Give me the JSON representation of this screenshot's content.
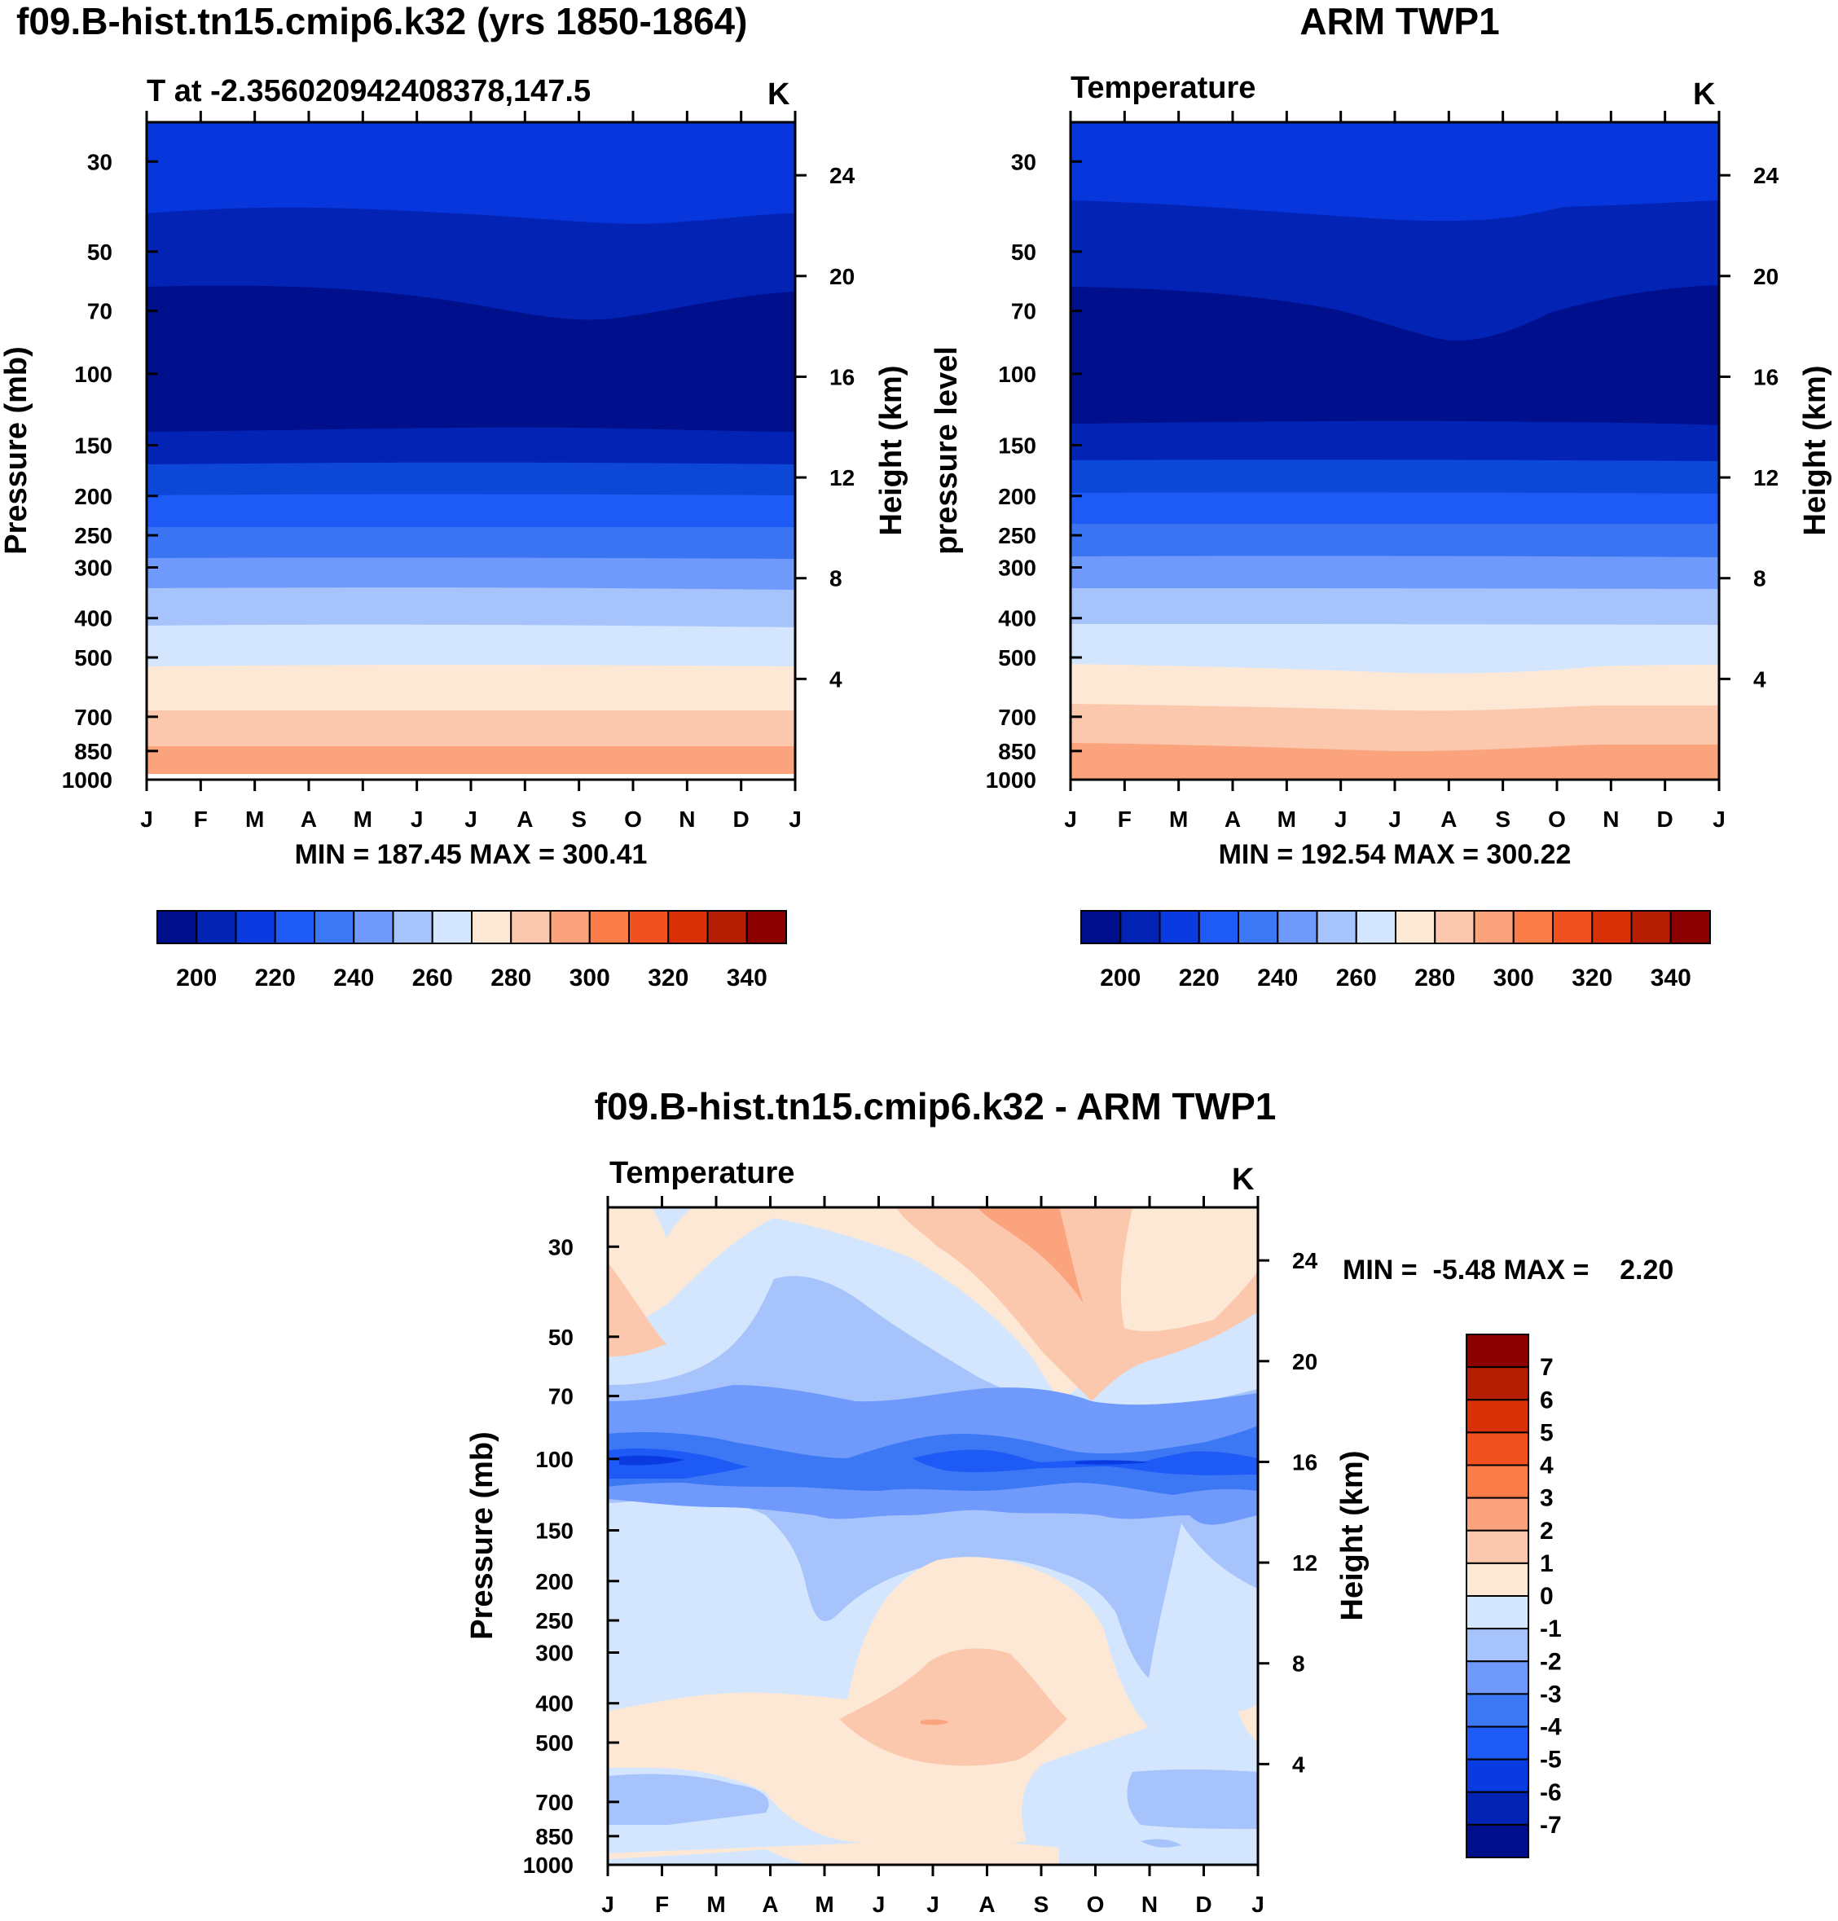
{
  "chart_data": [
    {
      "type": "contour",
      "id": "model",
      "title": "f09.B-hist.tn15.cmip6.k32 (yrs 1850-1864)",
      "subtitle": "T at -2.356020942408378,147.5",
      "units": "K",
      "ylabel": "Pressure (mb)",
      "y2label": "Height (km)",
      "x": [
        "J",
        "F",
        "M",
        "A",
        "M",
        "J",
        "J",
        "A",
        "S",
        "O",
        "N",
        "D",
        "J"
      ],
      "y_pressure_ticks": [
        30,
        50,
        70,
        100,
        150,
        200,
        250,
        300,
        400,
        500,
        700,
        850,
        1000
      ],
      "y_height_ticks": [
        24,
        20,
        16,
        12,
        8,
        4
      ],
      "ylim_mb": [
        1000,
        24
      ],
      "stats": "MIN = 187.45 MAX = 300.41",
      "levels": [
        195,
        200,
        205,
        215,
        230,
        245,
        260,
        275,
        285,
        295
      ],
      "bands_top_to_bottom": [
        {
          "range": "<220",
          "fill": "#0636dc"
        },
        {
          "range": "200-210",
          "fill": "#0323b4"
        },
        {
          "range": "<200",
          "fill": "#000f8c"
        },
        {
          "range": "200-210",
          "fill": "#0323b4"
        },
        {
          "range": "210-220",
          "fill": "#0d47d8"
        },
        {
          "range": "220-230",
          "fill": "#1e5af6"
        },
        {
          "range": "230-240",
          "fill": "#3a74f3"
        },
        {
          "range": "240-250",
          "fill": "#6f99fb"
        },
        {
          "range": "250-260",
          "fill": "#a7c3fb"
        },
        {
          "range": "260-270",
          "fill": "#d4e6fd"
        },
        {
          "range": "270-280",
          "fill": "#fde8d6"
        },
        {
          "range": "280-290",
          "fill": "#fbc8ad"
        },
        {
          "range": "290-300",
          "fill": "#fba37d"
        }
      ],
      "colorbar": {
        "colors": [
          "#000f8c",
          "#0323b4",
          "#0a3be0",
          "#1e5af6",
          "#3d78f4",
          "#6f99fb",
          "#a7c3fb",
          "#d4e6fd",
          "#fde8d6",
          "#fbc8ad",
          "#fba37d",
          "#fb7c48",
          "#f1501f",
          "#d93008",
          "#b51e03",
          "#8c0000"
        ],
        "labels": [
          "200",
          "220",
          "240",
          "260",
          "280",
          "300",
          "320",
          "340"
        ]
      }
    },
    {
      "type": "contour",
      "id": "obs",
      "title": "ARM TWP1",
      "subtitle": "Temperature",
      "units": "K",
      "ylabel": "pressure level",
      "y2label": "Height (km)",
      "x": [
        "J",
        "F",
        "M",
        "A",
        "M",
        "J",
        "J",
        "A",
        "S",
        "O",
        "N",
        "D",
        "J"
      ],
      "y_pressure_ticks": [
        30,
        50,
        70,
        100,
        150,
        200,
        250,
        300,
        400,
        500,
        700,
        850,
        1000
      ],
      "y_height_ticks": [
        24,
        20,
        16,
        12,
        8,
        4
      ],
      "ylim_mb": [
        1000,
        24
      ],
      "stats": "MIN = 192.54 MAX = 300.22",
      "colorbar": {
        "colors": [
          "#000f8c",
          "#0323b4",
          "#0a3be0",
          "#1e5af6",
          "#3d78f4",
          "#6f99fb",
          "#a7c3fb",
          "#d4e6fd",
          "#fde8d6",
          "#fbc8ad",
          "#fba37d",
          "#fb7c48",
          "#f1501f",
          "#d93008",
          "#b51e03",
          "#8c0000"
        ],
        "labels": [
          "200",
          "220",
          "240",
          "260",
          "280",
          "300",
          "320",
          "340"
        ]
      }
    },
    {
      "type": "contour",
      "id": "diff",
      "title": "f09.B-hist.tn15.cmip6.k32 - ARM TWP1",
      "subtitle": "Temperature",
      "units": "K",
      "ylabel": "Pressure (mb)",
      "y2label": "Height (km)",
      "x": [
        "J",
        "F",
        "M",
        "A",
        "M",
        "J",
        "J",
        "A",
        "S",
        "O",
        "N",
        "D",
        "J"
      ],
      "y_pressure_ticks": [
        30,
        50,
        70,
        100,
        150,
        200,
        250,
        300,
        400,
        500,
        700,
        850,
        1000
      ],
      "y_height_ticks": [
        24,
        20,
        16,
        12,
        8,
        4
      ],
      "ylim_mb": [
        1000,
        24
      ],
      "stats": "MIN =  -5.48 MAX =    2.20",
      "colorbar": {
        "colors": [
          "#8c0000",
          "#b51e03",
          "#d93008",
          "#f1501f",
          "#fb7c48",
          "#fba37d",
          "#fbc8ad",
          "#fde8d6",
          "#d4e6fd",
          "#a7c3fb",
          "#6f99fb",
          "#3d78f4",
          "#1e5af6",
          "#0a3be0",
          "#0323b4",
          "#000f8c"
        ],
        "labels": [
          "7",
          "6",
          "5",
          "4",
          "3",
          "2",
          "1",
          "0",
          "-1",
          "-2",
          "-3",
          "-4",
          "-5",
          "-6",
          "-7"
        ]
      }
    }
  ]
}
